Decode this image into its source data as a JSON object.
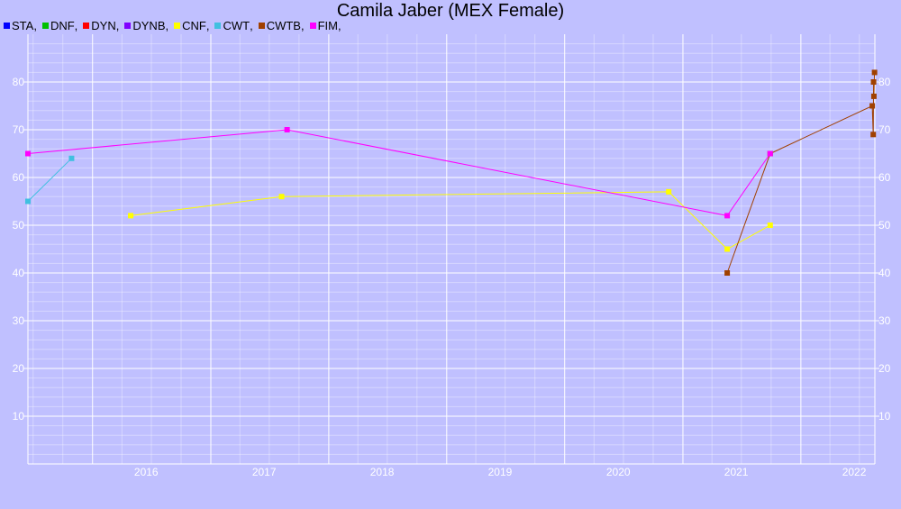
{
  "chart_data": {
    "type": "line",
    "title": "Camila Jaber (MEX Female)",
    "legend_position": "top-left",
    "grid": true,
    "xlim": [
      "2015-06-15",
      "2022-08-18"
    ],
    "ylim": [
      0,
      90
    ],
    "x_tick_labels": [
      "2016",
      "2017",
      "2018",
      "2019",
      "2020",
      "2021",
      "2022"
    ],
    "y_tick_labels": [
      "10",
      "20",
      "30",
      "40",
      "50",
      "60",
      "70",
      "80"
    ],
    "colors": {
      "background": "#c0c0ff",
      "grid": "#ffffff",
      "axis": "#ffffff"
    },
    "series": [
      {
        "name": "STA",
        "color": "#0000ff",
        "points": []
      },
      {
        "name": "DNF",
        "color": "#00c000",
        "points": []
      },
      {
        "name": "DYN",
        "color": "#ff0000",
        "points": []
      },
      {
        "name": "DYNB",
        "color": "#8000ff",
        "points": []
      },
      {
        "name": "CNF",
        "color": "#ffff00",
        "points": [
          [
            "2016-04-28",
            52
          ],
          [
            "2017-08-08",
            56
          ],
          [
            "2020-11-18",
            57
          ],
          [
            "2021-05-18",
            45
          ],
          [
            "2021-09-28",
            50
          ]
        ]
      },
      {
        "name": "CWT",
        "color": "#40c0e0",
        "points": [
          [
            "2015-06-15",
            55
          ],
          [
            "2015-10-28",
            64
          ]
        ]
      },
      {
        "name": "CWTB",
        "color": "#a04000",
        "points": [
          [
            "2021-05-18",
            40
          ],
          [
            "2021-09-28",
            65
          ],
          [
            "2022-08-10",
            75
          ],
          [
            "2022-08-13",
            69
          ],
          [
            "2022-08-14",
            80
          ],
          [
            "2022-08-15",
            77
          ],
          [
            "2022-08-17",
            82
          ]
        ]
      },
      {
        "name": "FIM",
        "color": "#ff00ff",
        "points": [
          [
            "2015-06-15",
            65
          ],
          [
            "2017-08-25",
            70
          ],
          [
            "2021-05-18",
            52
          ],
          [
            "2021-09-28",
            65
          ]
        ]
      }
    ]
  }
}
